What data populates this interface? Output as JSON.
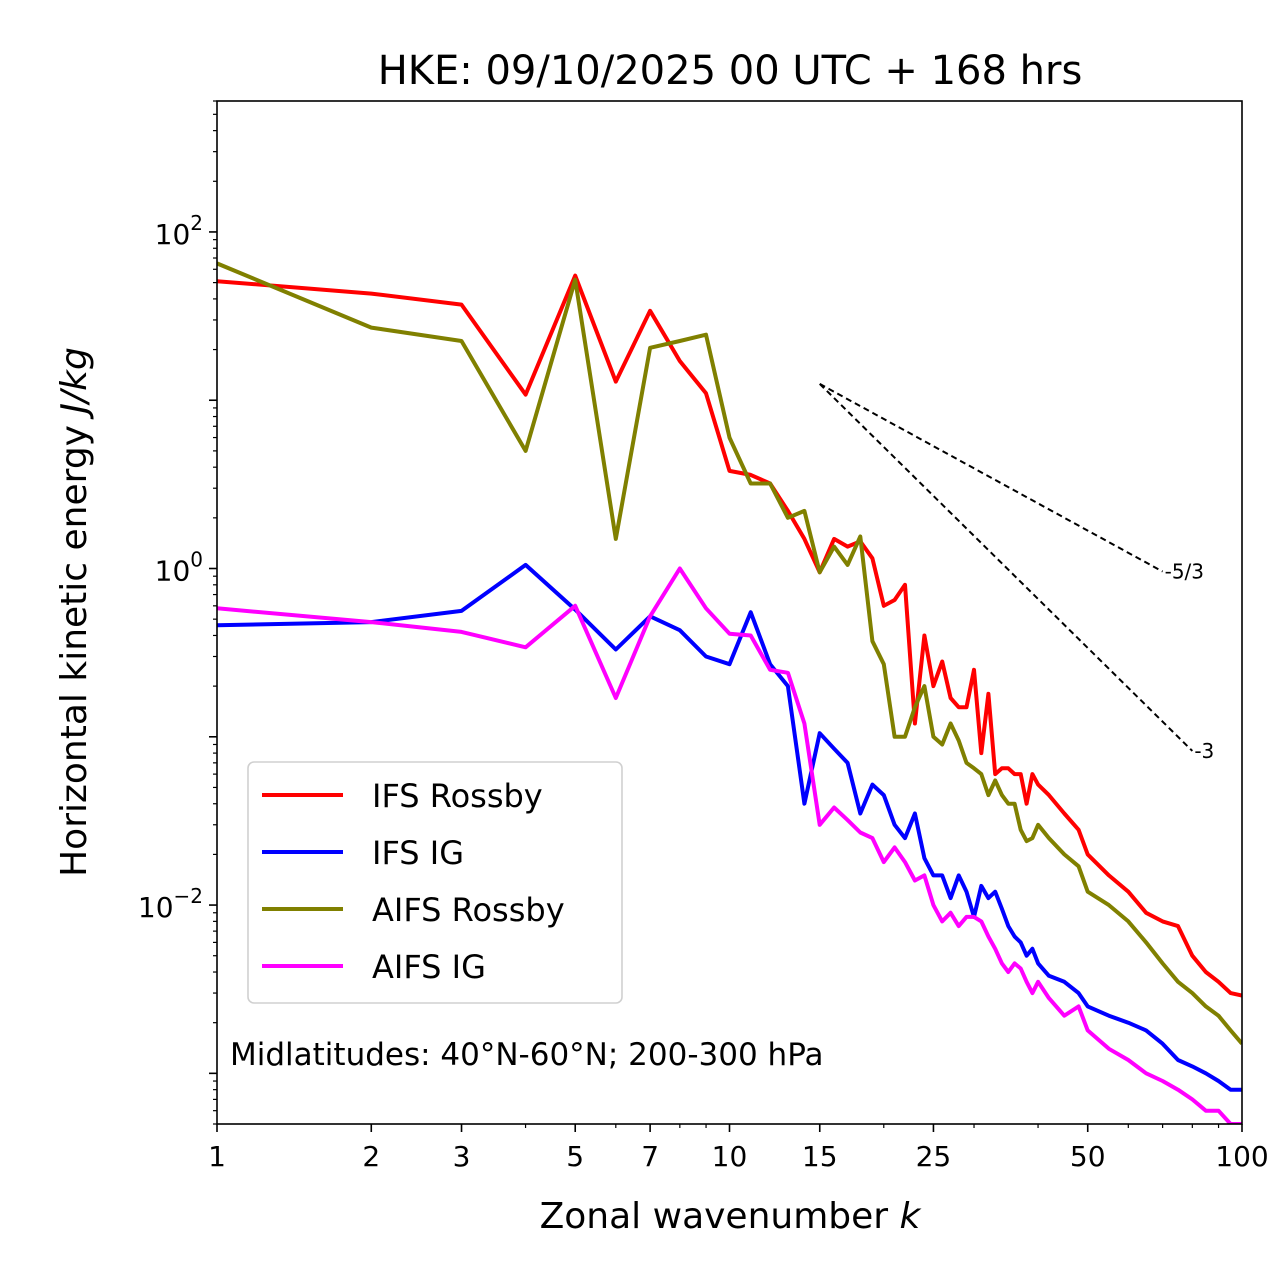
{
  "chart_data": {
    "type": "line",
    "title": "HKE: 09/10/2025 00 UTC + 168 hrs",
    "xlabel": "Zonal wavenumber",
    "xlabel_var": "k",
    "ylabel": "Horizontal kinetic energy",
    "ylabel_units": "J/kg",
    "xscale": "log",
    "yscale": "log",
    "xlim": [
      1,
      100
    ],
    "ylim": [
      0.0005,
      600
    ],
    "x_ticks": [
      {
        "value": 1,
        "label": "1"
      },
      {
        "value": 2,
        "label": "2"
      },
      {
        "value": 3,
        "label": "3"
      },
      {
        "value": 5,
        "label": "5"
      },
      {
        "value": 7,
        "label": "7"
      },
      {
        "value": 10,
        "label": "10"
      },
      {
        "value": 15,
        "label": "15"
      },
      {
        "value": 25,
        "label": "25"
      },
      {
        "value": 50,
        "label": "50"
      },
      {
        "value": 100,
        "label": "100"
      }
    ],
    "y_ticks": [
      {
        "value": 100,
        "base": "10",
        "exp": "2"
      },
      {
        "value": 1,
        "base": "10",
        "exp": "0"
      },
      {
        "value": 0.01,
        "base": "10",
        "exp": "−2"
      }
    ],
    "annotation": "Midlatitudes: 40°N-60°N; 200-300 hPa",
    "legend": {
      "location": "lower-left"
    },
    "series": [
      {
        "name": "IFS Rossby",
        "color": "#ff0000",
        "x": [
          1,
          2,
          3,
          4,
          5,
          6,
          7,
          8,
          9,
          10,
          11,
          12,
          13,
          14,
          15,
          16,
          17,
          18,
          19,
          20,
          21,
          22,
          23,
          24,
          25,
          26,
          27,
          28,
          29,
          30,
          31,
          32,
          33,
          34,
          35,
          36,
          37,
          38,
          39,
          40,
          42,
          45,
          48,
          50,
          55,
          60,
          65,
          70,
          75,
          80,
          85,
          90,
          95,
          100
        ],
        "y": [
          51,
          43,
          37,
          10.8,
          55,
          12.9,
          34,
          17.1,
          11,
          3.8,
          3.6,
          3.2,
          2.2,
          1.5,
          0.95,
          1.5,
          1.35,
          1.45,
          1.15,
          0.6,
          0.65,
          0.8,
          0.12,
          0.4,
          0.2,
          0.28,
          0.17,
          0.15,
          0.15,
          0.25,
          0.08,
          0.18,
          0.06,
          0.065,
          0.065,
          0.06,
          0.06,
          0.04,
          0.06,
          0.052,
          0.045,
          0.035,
          0.028,
          0.02,
          0.015,
          0.012,
          0.009,
          0.008,
          0.0075,
          0.005,
          0.004,
          0.0035,
          0.003,
          0.0029
        ]
      },
      {
        "name": "IFS IG",
        "color": "#0000ff",
        "x": [
          1,
          2,
          3,
          4,
          5,
          6,
          7,
          8,
          9,
          10,
          11,
          12,
          13,
          14,
          15,
          16,
          17,
          18,
          19,
          20,
          21,
          22,
          23,
          24,
          25,
          26,
          27,
          28,
          29,
          30,
          31,
          32,
          33,
          34,
          35,
          36,
          37,
          38,
          39,
          40,
          42,
          45,
          48,
          50,
          55,
          60,
          65,
          70,
          75,
          80,
          85,
          90,
          95,
          100
        ],
        "y": [
          0.46,
          0.48,
          0.56,
          1.05,
          0.57,
          0.33,
          0.52,
          0.43,
          0.3,
          0.27,
          0.55,
          0.27,
          0.2,
          0.04,
          0.105,
          0.085,
          0.07,
          0.035,
          0.052,
          0.045,
          0.03,
          0.025,
          0.035,
          0.019,
          0.015,
          0.015,
          0.011,
          0.015,
          0.012,
          0.0085,
          0.013,
          0.011,
          0.012,
          0.0095,
          0.0075,
          0.0065,
          0.006,
          0.005,
          0.0055,
          0.0045,
          0.0038,
          0.0035,
          0.003,
          0.0025,
          0.0022,
          0.002,
          0.0018,
          0.0015,
          0.0012,
          0.0011,
          0.001,
          0.0009,
          0.0008,
          0.0008
        ]
      },
      {
        "name": "AIFS Rossby",
        "color": "#808000",
        "x": [
          1,
          2,
          3,
          4,
          5,
          6,
          7,
          8,
          9,
          10,
          11,
          12,
          13,
          14,
          15,
          16,
          17,
          18,
          19,
          20,
          21,
          22,
          23,
          24,
          25,
          26,
          27,
          28,
          29,
          30,
          31,
          32,
          33,
          34,
          35,
          36,
          37,
          38,
          39,
          40,
          42,
          45,
          48,
          50,
          55,
          60,
          65,
          70,
          75,
          80,
          85,
          90,
          95,
          100
        ],
        "y": [
          65,
          27,
          22.5,
          5,
          52,
          1.5,
          20.5,
          22.5,
          24.5,
          6,
          3.2,
          3.2,
          2,
          2.2,
          0.95,
          1.35,
          1.05,
          1.55,
          0.37,
          0.27,
          0.1,
          0.1,
          0.15,
          0.2,
          0.1,
          0.09,
          0.12,
          0.095,
          0.07,
          0.065,
          0.06,
          0.045,
          0.055,
          0.045,
          0.04,
          0.04,
          0.028,
          0.024,
          0.025,
          0.03,
          0.025,
          0.02,
          0.017,
          0.012,
          0.01,
          0.008,
          0.006,
          0.0045,
          0.0035,
          0.003,
          0.0025,
          0.0022,
          0.0018,
          0.0015
        ]
      },
      {
        "name": "AIFS IG",
        "color": "#ff00ff",
        "x": [
          1,
          2,
          3,
          4,
          5,
          6,
          7,
          8,
          9,
          10,
          11,
          12,
          13,
          14,
          15,
          16,
          17,
          18,
          19,
          20,
          21,
          22,
          23,
          24,
          25,
          26,
          27,
          28,
          29,
          30,
          31,
          32,
          33,
          34,
          35,
          36,
          37,
          38,
          39,
          40,
          42,
          45,
          48,
          50,
          55,
          60,
          65,
          70,
          75,
          80,
          85,
          90,
          95,
          100
        ],
        "y": [
          0.58,
          0.48,
          0.42,
          0.34,
          0.6,
          0.17,
          0.52,
          1.0,
          0.58,
          0.41,
          0.4,
          0.25,
          0.24,
          0.12,
          0.03,
          0.038,
          0.032,
          0.027,
          0.025,
          0.018,
          0.022,
          0.018,
          0.014,
          0.015,
          0.01,
          0.008,
          0.009,
          0.0075,
          0.0085,
          0.0085,
          0.008,
          0.0065,
          0.0055,
          0.0045,
          0.004,
          0.0045,
          0.0042,
          0.0035,
          0.003,
          0.0035,
          0.0028,
          0.0022,
          0.0025,
          0.0018,
          0.0014,
          0.0012,
          0.001,
          0.0009,
          0.0008,
          0.0007,
          0.0006,
          0.0006,
          0.0005,
          0.0005
        ]
      }
    ],
    "reference_slopes": [
      {
        "label": "-5/3",
        "exponent": -1.6667,
        "x_start": 15,
        "x_end": 70,
        "y_start": 12.5
      },
      {
        "label": "-3",
        "exponent": -3,
        "x_start": 15,
        "x_end": 80,
        "y_start": 12.5
      }
    ]
  }
}
